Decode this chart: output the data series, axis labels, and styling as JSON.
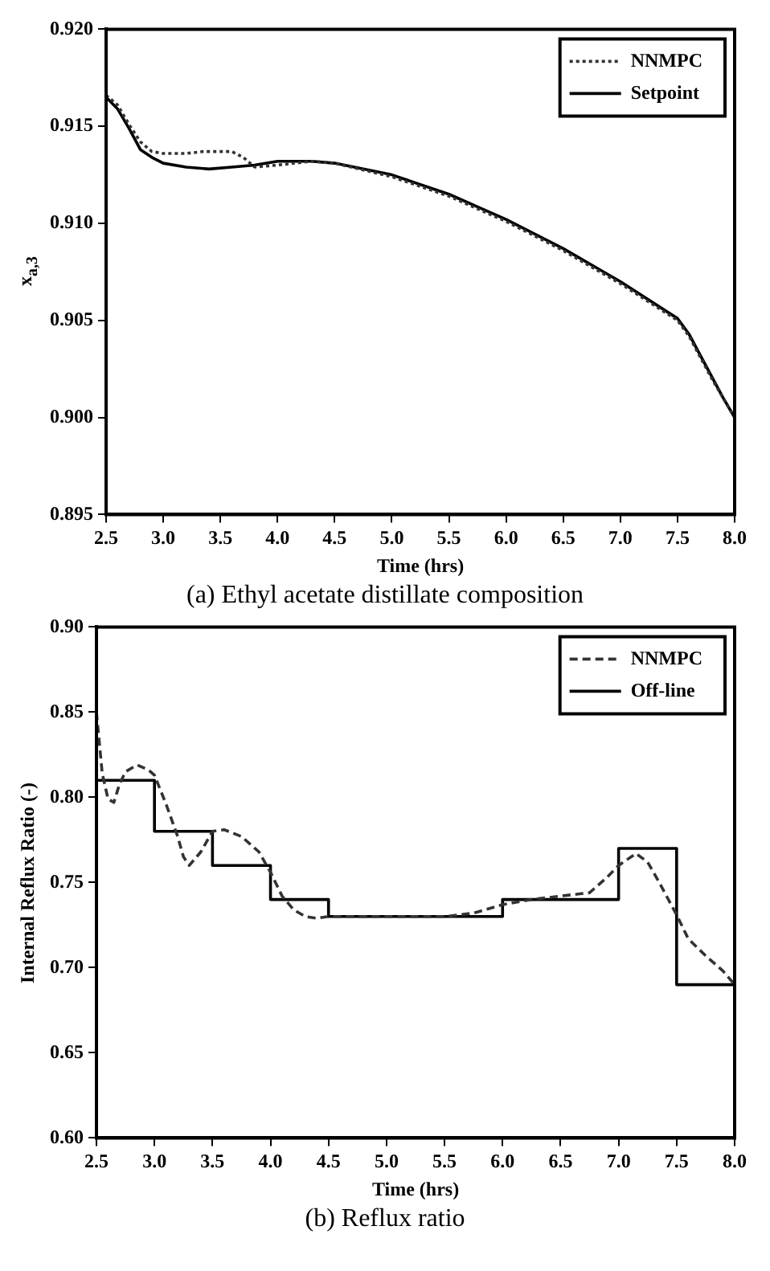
{
  "chart_data": [
    {
      "type": "line",
      "title": "(a) Ethyl acetate distillate composition",
      "xlabel": "Time (hrs)",
      "ylabel": "x$_{a,3}$",
      "xlim": [
        2.5,
        8.0
      ],
      "xticks": [
        {
          "value": 2.5,
          "label": "2.5"
        },
        {
          "value": 3,
          "label": "3.0"
        },
        {
          "value": 3.5,
          "label": "3.5"
        },
        {
          "value": 4,
          "label": "4.0"
        },
        {
          "value": 4.5,
          "label": "4.5"
        },
        {
          "value": 5,
          "label": "5.0"
        },
        {
          "value": 5.5,
          "label": "5.5"
        },
        {
          "value": 6,
          "label": "6.0"
        },
        {
          "value": 6.5,
          "label": "6.5"
        },
        {
          "value": 7,
          "label": "7.0"
        },
        {
          "value": 7.5,
          "label": "7.5"
        },
        {
          "value": 8,
          "label": "8.0"
        }
      ],
      "ylim": [
        0.895,
        0.92
      ],
      "yticks": [
        0.895,
        {
          "value": 0.9,
          "label": "0.900"
        },
        0.905,
        {
          "value": 0.91,
          "label": "0.910"
        },
        0.915,
        {
          "value": 0.92,
          "label": "0.920"
        }
      ],
      "grid": false,
      "legend": "top right",
      "series": [
        {
          "name": "NNMPC",
          "color": "#333333",
          "line_style": "dotted",
          "x": [
            2.5,
            2.6,
            2.7,
            2.8,
            2.9,
            3.0,
            3.2,
            3.35,
            3.6,
            3.7,
            3.8,
            4.0,
            4.3,
            4.5,
            5.0,
            5.5,
            6.0,
            6.5,
            7.0,
            7.5,
            7.6,
            7.8,
            8.0
          ],
          "values": [
            0.9166,
            0.9161,
            0.9151,
            0.9142,
            0.9137,
            0.9136,
            0.9136,
            0.9137,
            0.9137,
            0.9134,
            0.9129,
            0.913,
            0.9132,
            0.9131,
            0.9124,
            0.9114,
            0.9101,
            0.9086,
            0.9069,
            0.905,
            0.9042,
            0.902,
            0.9
          ]
        },
        {
          "name": "Setpoint",
          "color": "#000000",
          "line_style": "solid",
          "x": [
            2.5,
            2.6,
            2.7,
            2.8,
            2.9,
            3.0,
            3.2,
            3.4,
            3.6,
            3.8,
            4.0,
            4.3,
            4.5,
            5.0,
            5.5,
            6.0,
            6.5,
            7.0,
            7.5,
            7.6,
            7.7,
            7.8,
            7.9,
            8.0
          ],
          "values": [
            0.9165,
            0.9159,
            0.9149,
            0.9138,
            0.9134,
            0.9131,
            0.9129,
            0.9128,
            0.9129,
            0.913,
            0.9132,
            0.9132,
            0.9131,
            0.9125,
            0.9115,
            0.9102,
            0.9087,
            0.907,
            0.9051,
            0.9043,
            0.9032,
            0.9021,
            0.901,
            0.9
          ]
        }
      ]
    },
    {
      "type": "line",
      "title": "(b) Reflux ratio",
      "xlabel": "Time (hrs)",
      "ylabel": "Internal Reflux Ratio (-)",
      "xlim": [
        2.5,
        8.0
      ],
      "xticks": [
        {
          "value": 2.5,
          "label": "2.5"
        },
        {
          "value": 3,
          "label": "3.0"
        },
        {
          "value": 3.5,
          "label": "3.5"
        },
        {
          "value": 4,
          "label": "4.0"
        },
        {
          "value": 4.5,
          "label": "4.5"
        },
        {
          "value": 5,
          "label": "5.0"
        },
        {
          "value": 5.5,
          "label": "5.5"
        },
        {
          "value": 6,
          "label": "6.0"
        },
        {
          "value": 6.5,
          "label": "6.5"
        },
        {
          "value": 7,
          "label": "7.0"
        },
        {
          "value": 7.5,
          "label": "7.5"
        },
        {
          "value": 8,
          "label": "8.0"
        }
      ],
      "ylim": [
        0.6,
        0.9
      ],
      "yticks": [
        {
          "value": 0.6,
          "label": "0.60"
        },
        0.65,
        {
          "value": 0.7,
          "label": "0.70"
        },
        0.75,
        {
          "value": 0.8,
          "label": "0.80"
        },
        0.85,
        {
          "value": 0.9,
          "label": "0.90"
        }
      ],
      "grid": false,
      "legend": "top right",
      "series": [
        {
          "name": "NNMPC",
          "color": "#333333",
          "line_style": "dashed",
          "x": [
            2.5,
            2.55,
            2.6,
            2.65,
            2.7,
            2.75,
            2.85,
            2.95,
            3.0,
            3.1,
            3.2,
            3.25,
            3.3,
            3.4,
            3.5,
            3.6,
            3.75,
            3.9,
            4.0,
            4.1,
            4.2,
            4.3,
            4.4,
            4.5,
            5.0,
            5.5,
            5.75,
            6.0,
            6.25,
            6.5,
            6.75,
            6.9,
            7.0,
            7.15,
            7.25,
            7.35,
            7.5,
            7.6,
            7.75,
            7.9,
            8.0
          ],
          "values": [
            0.85,
            0.814,
            0.799,
            0.797,
            0.808,
            0.815,
            0.819,
            0.816,
            0.813,
            0.796,
            0.777,
            0.765,
            0.76,
            0.768,
            0.78,
            0.781,
            0.777,
            0.768,
            0.756,
            0.742,
            0.734,
            0.73,
            0.729,
            0.73,
            0.73,
            0.73,
            0.732,
            0.737,
            0.74,
            0.742,
            0.744,
            0.753,
            0.76,
            0.767,
            0.762,
            0.75,
            0.731,
            0.717,
            0.707,
            0.698,
            0.69
          ]
        },
        {
          "name": "Off-line",
          "type": "step",
          "color": "#000000",
          "line_style": "solid",
          "x": [
            2.5,
            3.0,
            3.5,
            4.0,
            4.5,
            6.0,
            7.0,
            7.5,
            8.0
          ],
          "values": [
            0.81,
            0.78,
            0.76,
            0.74,
            0.73,
            0.74,
            0.77,
            0.69,
            0.69
          ]
        }
      ]
    }
  ]
}
